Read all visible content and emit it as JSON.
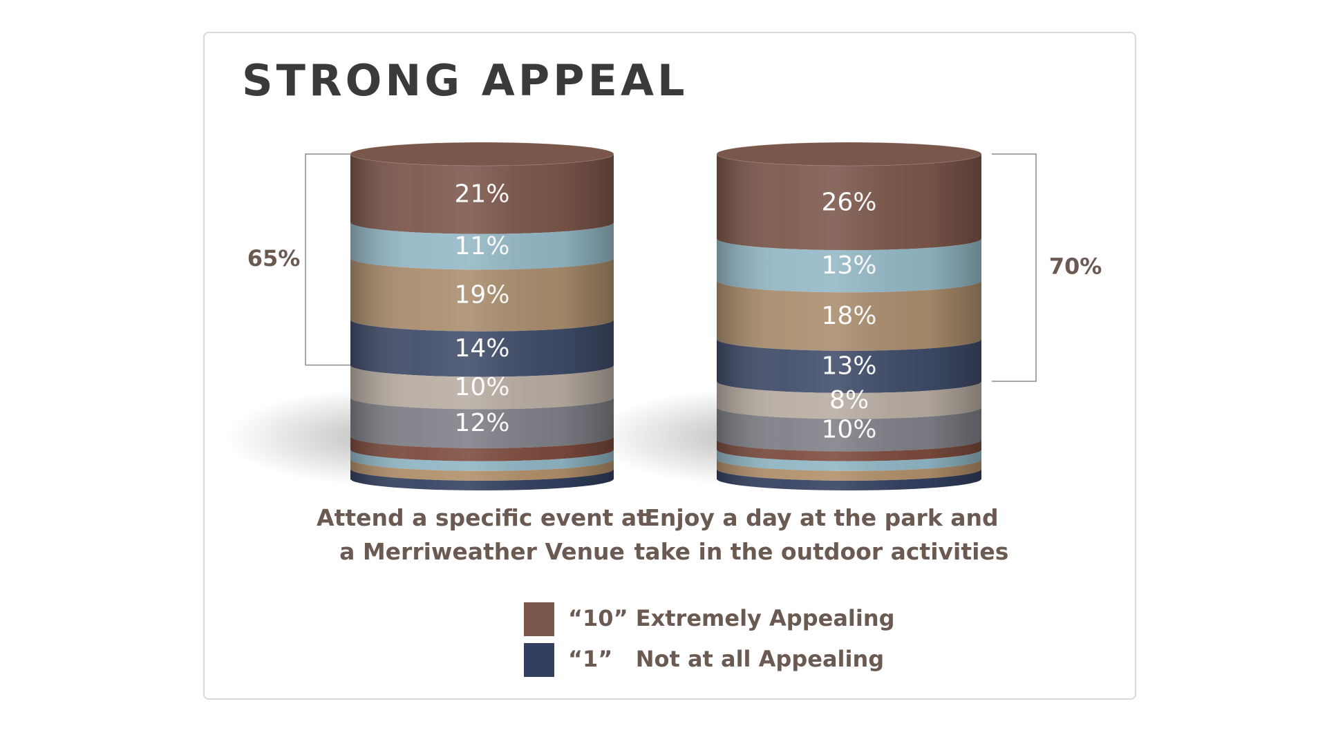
{
  "chart_data": {
    "type": "stacked-cylinder",
    "title": "STRONG APPEAL",
    "categories": [
      "Attend a specific event at\na Merriweather Venue",
      "Enjoy a day at the park and\ntake in the outdoor activities"
    ],
    "ylim": [
      0,
      100
    ],
    "series": [
      {
        "name": "“10” Extremely Appealing",
        "color": "#7b564a",
        "values": [
          21,
          26
        ],
        "value_labels": [
          "21%",
          "26%"
        ]
      },
      {
        "color": "#93b7c5",
        "values": [
          11,
          13
        ],
        "value_labels": [
          "11%",
          "13%"
        ]
      },
      {
        "color": "#a98c6c",
        "values": [
          19,
          18
        ],
        "value_labels": [
          "19%",
          "18%"
        ]
      },
      {
        "color": "#3f4b68",
        "values": [
          14,
          13
        ],
        "value_labels": [
          "14%",
          "13%"
        ]
      },
      {
        "color": "#b7aca1",
        "values": [
          10,
          8
        ],
        "value_labels": [
          "10%",
          "8%"
        ]
      },
      {
        "color": "#7e7f86",
        "values": [
          12,
          10
        ],
        "value_labels": [
          "12%",
          "10%"
        ]
      },
      {
        "color": "#7b4a3c",
        "values": [
          4,
          3
        ]
      },
      {
        "color": "#8fb5c4",
        "values": [
          3,
          3
        ]
      },
      {
        "color": "#b08e68",
        "values": [
          3,
          3
        ]
      },
      {
        "name": "“1”   Not at all Appealing",
        "color": "#323f5e",
        "values": [
          3,
          3
        ]
      }
    ],
    "brackets": {
      "values": [
        65,
        70
      ],
      "value_labels": [
        "65%",
        "70%"
      ]
    }
  }
}
